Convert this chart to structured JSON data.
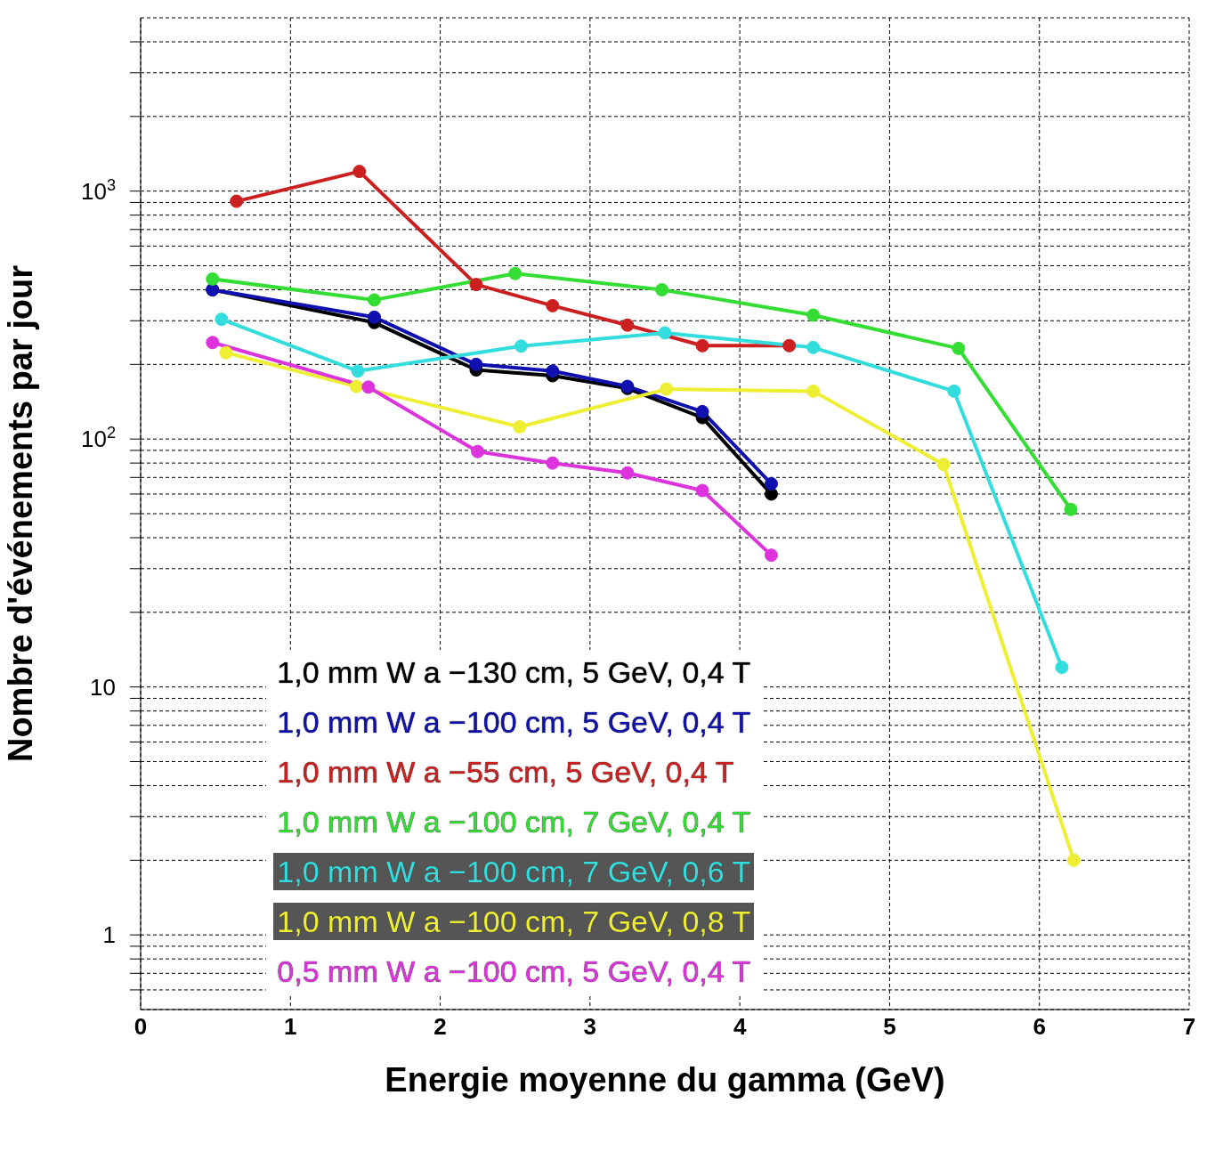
{
  "chart_data": {
    "type": "line",
    "xlabel": "Energie moyenne du gamma (GeV)",
    "ylabel": "Nombre d'événements par jour",
    "log": "y",
    "grid": true,
    "legend": "bottom left",
    "marker": "circle",
    "line_style": "solid",
    "xlim": [
      0,
      7
    ],
    "xticks": [
      0,
      1,
      2,
      3,
      4,
      5,
      6,
      7
    ],
    "ylim": [
      0.5,
      5000
    ],
    "yticks": [
      {
        "value": 0.6,
        "label": null
      },
      {
        "value": 0.7,
        "label": null
      },
      {
        "value": 0.8,
        "label": null
      },
      {
        "value": 0.9,
        "label": null
      },
      1,
      {
        "value": 2,
        "label": null
      },
      {
        "value": 3,
        "label": null
      },
      {
        "value": 4,
        "label": null
      },
      {
        "value": 5,
        "label": null
      },
      {
        "value": 6,
        "label": null
      },
      {
        "value": 7,
        "label": null
      },
      {
        "value": 8,
        "label": null
      },
      {
        "value": 9,
        "label": null
      },
      10,
      {
        "value": 20,
        "label": null
      },
      {
        "value": 30,
        "label": null
      },
      {
        "value": 40,
        "label": null
      },
      {
        "value": 50,
        "label": null
      },
      {
        "value": 60,
        "label": null
      },
      {
        "value": 70,
        "label": null
      },
      {
        "value": 80,
        "label": null
      },
      {
        "value": 90,
        "label": null
      },
      {
        "value": 100,
        "label": "10$^{2}$"
      },
      {
        "value": 200,
        "label": null
      },
      {
        "value": 300,
        "label": null
      },
      {
        "value": 400,
        "label": null
      },
      {
        "value": 500,
        "label": null
      },
      {
        "value": 600,
        "label": null
      },
      {
        "value": 700,
        "label": null
      },
      {
        "value": 800,
        "label": null
      },
      {
        "value": 900,
        "label": null
      },
      {
        "value": 1000,
        "label": "10$^{3}$"
      },
      {
        "value": 2000,
        "label": null
      },
      {
        "value": 3000,
        "label": null
      },
      {
        "value": 4000,
        "label": null
      }
    ],
    "series": [
      {
        "name": "1,0 mm W a −130 cm, 5 GeV, 0,4 T",
        "color": "#000000",
        "x": [
          0.48,
          1.56,
          2.24,
          2.75,
          3.25,
          3.75,
          4.21
        ],
        "values": [
          400,
          295,
          190,
          180,
          160,
          122,
          60
        ]
      },
      {
        "name": "1,0 mm W a −100 cm, 5 GeV, 0,4 T",
        "color": "#1010b0",
        "x": [
          0.48,
          1.56,
          2.24,
          2.75,
          3.25,
          3.75,
          4.21
        ],
        "values": [
          400,
          310,
          200,
          188,
          163,
          129,
          66
        ]
      },
      {
        "name": "1,0 mm W a −55 cm, 5 GeV, 0,4 T",
        "color": "#cc2020",
        "x": [
          0.64,
          1.46,
          2.24,
          2.75,
          3.25,
          3.75,
          4.33
        ],
        "values": [
          910,
          1200,
          420,
          345,
          288,
          238,
          238
        ]
      },
      {
        "name": "1,0 mm W a −100 cm, 7 GeV, 0,4 T",
        "color": "#33dd33",
        "x": [
          0.48,
          1.56,
          2.5,
          3.48,
          4.49,
          5.46,
          6.21
        ],
        "values": [
          442,
          364,
          465,
          400,
          316,
          232,
          52
        ]
      },
      {
        "name": "1,0 mm W a −100 cm, 7 GeV, 0,6 T",
        "color": "#33dddd",
        "x": [
          0.54,
          1.45,
          2.54,
          3.5,
          4.49,
          5.43,
          6.15
        ],
        "values": [
          304,
          188,
          237,
          268,
          234,
          156,
          12
        ]
      },
      {
        "name": "1,0 mm W a −100 cm, 7 GeV, 0,8 T",
        "color": "#eeee33",
        "x": [
          0.57,
          1.44,
          2.53,
          3.51,
          4.49,
          5.36,
          6.23
        ],
        "values": [
          223,
          163,
          112,
          159,
          156,
          79,
          2
        ]
      },
      {
        "name": "0,5 mm W a −100 cm, 5 GeV, 0,4 T",
        "color": "#dd33dd",
        "x": [
          0.48,
          1.52,
          2.25,
          2.75,
          3.25,
          3.75,
          4.21
        ],
        "values": [
          245,
          162,
          89,
          80,
          73,
          62,
          34
        ]
      }
    ]
  }
}
